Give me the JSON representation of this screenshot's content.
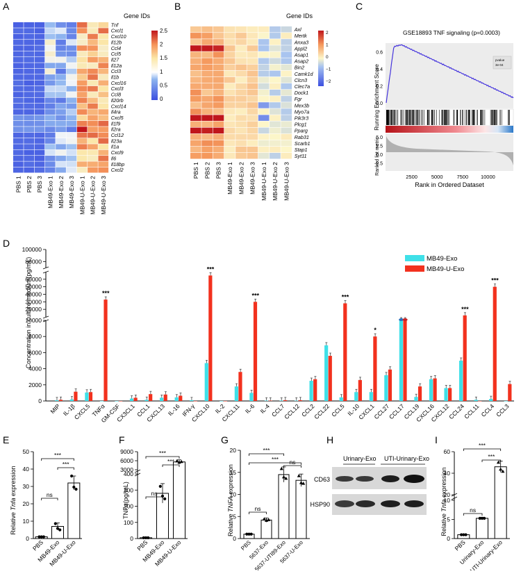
{
  "panels": {
    "A": "A",
    "B": "B",
    "C": "C",
    "D": "D",
    "E": "E",
    "F": "F",
    "G": "G",
    "H": "H",
    "I": "I"
  },
  "heatmap_A": {
    "title": "Gene IDs",
    "genes": [
      "Tnf",
      "Cxcl1",
      "Cxcl10",
      "Il12b",
      "Ccl4",
      "Ccl5",
      "Il27",
      "Il12a",
      "Ccl3",
      "Il1b",
      "Cxcl16",
      "Cxcl3",
      "Ccl8",
      "Il20rb",
      "Cxcl14",
      "Il4ra",
      "Cxcl5",
      "Il1f9",
      "Il2ra",
      "Ccl12",
      "Il23a",
      "Il1a",
      "Cxcl9",
      "Il6",
      "Il18bp",
      "Cxcl2"
    ],
    "samples": [
      "PBS 1",
      "PBS 2",
      "PBS 3",
      "MB49-Exo 1",
      "MB49-Exo 2",
      "MB49-Exo 3",
      "MB49-U-Exo 1",
      "MB49-U-Exo 2",
      "MB49-U-Exo 3"
    ],
    "scale": [
      "2.5",
      "2",
      "1.5",
      "1",
      "0.5",
      "0"
    ]
  },
  "heatmap_B": {
    "title": "Gene IDs",
    "genes": [
      "Axl",
      "Mertk",
      "Anxa3",
      "Appl2",
      "Asap1",
      "Asap2",
      "Bin2",
      "Camk1d",
      "Clcn3",
      "Clec7a",
      "Dock1",
      "Fgr",
      "Mex3b",
      "Myo7a",
      "Pik3r3",
      "Plcg1",
      "Pparg",
      "Rab31",
      "Scarb1",
      "Stap1",
      "Syt11"
    ],
    "samples": [
      "PBS 1",
      "PBS 2",
      "PBS 3",
      "MB49-Exo 1",
      "MB49-Exo 2",
      "MB49-Exo 3",
      "MB49-U-Exo 1",
      "MB49-U-Exo 2",
      "MB49-U-Exo 3"
    ],
    "scale": [
      "2",
      "1",
      "0",
      "−1",
      "−2"
    ]
  },
  "gsea": {
    "title": "GSE18893 TNF signaling (p=0.0003)",
    "ylabel_top": "Running Enrichment Score",
    "ylabel_bottom": "Ranked list metric",
    "xlabel": "Rank in Ordered Dataset",
    "legend_label": "pvalue",
    "legend_value": "3e-04",
    "y_ticks_top": [
      "0.6",
      "0.4",
      "0.2",
      "0.0"
    ],
    "y_ticks_bottom": [
      "5.0",
      "2.5",
      "0.0",
      "-2.5"
    ],
    "x_ticks": [
      "2500",
      "5000",
      "7500",
      "10000"
    ]
  },
  "chart_data": [
    {
      "type": "bar",
      "panel": "D",
      "ylabel": "Concentration in culture medium(pg/mL)",
      "categories": [
        "MIP",
        "IL-1β",
        "CXCL5",
        "TNFα",
        "GM-CSF",
        "CX3CL1",
        "CCL1",
        "CXCL13",
        "IL-16",
        "IFN-γ",
        "CXCL10",
        "IL-2",
        "CXCL11",
        "IL-6",
        "IL-4",
        "CCL7",
        "CCL12",
        "CCL2",
        "CCL22",
        "CCL5",
        "IL-10",
        "CXCL1",
        "CCL27",
        "CCL17",
        "CCL19",
        "CXCL16",
        "CXCL12",
        "CCL24",
        "CCL11",
        "CCL4",
        "CCL3"
      ],
      "series": [
        {
          "name": "MB49-Exo",
          "color": "#3fe0e8",
          "values": [
            100,
            200,
            1050,
            0,
            0,
            300,
            150,
            400,
            450,
            100,
            4700,
            0,
            1800,
            1000,
            50,
            50,
            50,
            2500,
            6900,
            450,
            1100,
            1100,
            3200,
            10000,
            500,
            2700,
            1600,
            5000,
            150,
            250,
            0
          ]
        },
        {
          "name": "MB49-U-Exo",
          "color": "#f2311e",
          "values": [
            150,
            1150,
            1100,
            33000,
            0,
            400,
            850,
            800,
            650,
            0,
            65000,
            0,
            3600,
            30000,
            50,
            100,
            100,
            2700,
            5600,
            28000,
            2600,
            8000,
            3900,
            10000,
            1800,
            2800,
            1600,
            12000,
            0,
            50000,
            2100
          ]
        }
      ],
      "y_ticks": [
        "0",
        "2000",
        "4000",
        "6000",
        "8000",
        "10000",
        "20000",
        "30000",
        "40000",
        "50000",
        "60000",
        "80000",
        "100000"
      ],
      "significance": [
        {
          "category": "TNFα",
          "label": "***"
        },
        {
          "category": "CXCL10",
          "label": "***"
        },
        {
          "category": "IL-6",
          "label": "***"
        },
        {
          "category": "CCL5",
          "label": "***"
        },
        {
          "category": "CXCL1",
          "label": "*"
        },
        {
          "category": "CCL24",
          "label": "***"
        },
        {
          "category": "CCL4",
          "label": "***"
        }
      ]
    },
    {
      "type": "bar",
      "panel": "E",
      "ylabel": "Relative Tnfa expression",
      "categories": [
        "PBS",
        "MB49-Exo",
        "MB49-U-Exo"
      ],
      "values": [
        1,
        7,
        32
      ],
      "ylim": [
        0,
        50
      ],
      "y_ticks": [
        "0",
        "10",
        "20",
        "30",
        "40",
        "50"
      ],
      "brackets": [
        {
          "label": "ns"
        },
        {
          "label": "***"
        },
        {
          "label": "***"
        }
      ]
    },
    {
      "type": "bar",
      "panel": "F",
      "ylabel": "TNFα(pg/mL)",
      "categories": [
        "PBS",
        "MB49-Exo",
        "MB49-U-Exo"
      ],
      "values": [
        5,
        280,
        5600
      ],
      "y_ticks": [
        "0",
        "100",
        "200",
        "300",
        "400",
        "3000",
        "6000",
        "9000"
      ],
      "brackets": [
        {
          "label": "ns"
        },
        {
          "label": "***"
        },
        {
          "label": "***"
        }
      ]
    },
    {
      "type": "bar",
      "panel": "G",
      "ylabel": "Relative TNFA expression",
      "categories": [
        "PBS",
        "5637-Exo",
        "5637-UTI89-Exo",
        "5637-U-Exo"
      ],
      "values": [
        1,
        4.2,
        14.5,
        13.2
      ],
      "ylim": [
        0,
        20
      ],
      "y_ticks": [
        "0",
        "5",
        "10",
        "15",
        "20"
      ],
      "brackets": [
        {
          "label": "ns"
        },
        {
          "label": "***"
        },
        {
          "label": "***"
        },
        {
          "label": "ns"
        }
      ]
    },
    {
      "type": "bar",
      "panel": "I",
      "ylabel": "Relative Tnfa expression",
      "categories": [
        "PBS",
        "Urinary-Exo",
        "UTI-Urinary-Exo"
      ],
      "values": [
        1,
        5.3,
        46
      ],
      "ylim": [
        0,
        60
      ],
      "y_ticks": [
        "0",
        "5",
        "10",
        "20",
        "40",
        "60"
      ],
      "brackets": [
        {
          "label": "ns"
        },
        {
          "label": "***"
        },
        {
          "label": "***"
        }
      ]
    }
  ],
  "blot": {
    "labels": [
      "Urinary-Exo",
      "UTI-Urinary-Exo"
    ],
    "bands": [
      "CD63",
      "HSP90"
    ]
  }
}
